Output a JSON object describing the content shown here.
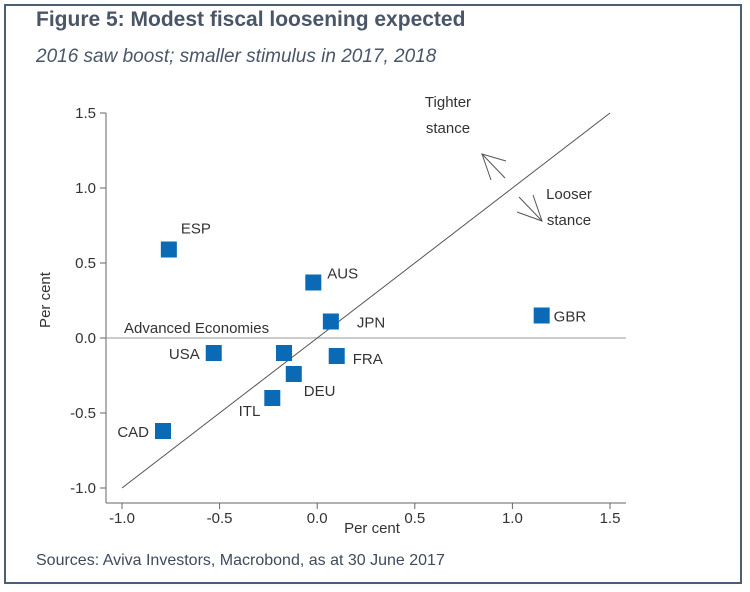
{
  "header": {
    "title": "Figure 5: Modest fiscal loosening expected",
    "subtitle": "2016 saw boost; smaller stimulus in 2017, 2018"
  },
  "footer": {
    "source": "Sources: Aviva Investors, Macrobond, as at 30 June 2017"
  },
  "chart_data": {
    "type": "scatter",
    "xlabel": "Per cent",
    "ylabel": "Per cent",
    "xlim": [
      -1.05,
      1.55
    ],
    "ylim": [
      -1.05,
      1.5
    ],
    "xticks": [
      "-1.0",
      "-0.5",
      "0.0",
      "0.5",
      "1.0",
      "1.5"
    ],
    "yticks": [
      "1.5",
      "1.0",
      "0.5",
      "0.0",
      "-0.5",
      "-1.0"
    ],
    "marker_color": "#0a6ab5",
    "diagonal_line": [
      [
        -1.0,
        -1.0
      ],
      [
        1.5,
        1.5
      ]
    ],
    "zero_line_label": "Advanced Economies",
    "annotations": {
      "tighter": [
        "Tighter",
        "stance"
      ],
      "looser": [
        "Looser",
        "stance"
      ]
    },
    "points": [
      {
        "label": "ESP",
        "x": -0.76,
        "y": 0.59
      },
      {
        "label": "AUS",
        "x": -0.02,
        "y": 0.37
      },
      {
        "label": "JPN",
        "x": 0.07,
        "y": 0.11
      },
      {
        "label": "GBR",
        "x": 1.15,
        "y": 0.15
      },
      {
        "label": "USA",
        "x": -0.53,
        "y": -0.1
      },
      {
        "label": "",
        "x": -0.17,
        "y": -0.1
      },
      {
        "label": "FRA",
        "x": 0.1,
        "y": -0.12
      },
      {
        "label": "DEU",
        "x": -0.12,
        "y": -0.24
      },
      {
        "label": "ITL",
        "x": -0.23,
        "y": -0.4
      },
      {
        "label": "CAD",
        "x": -0.79,
        "y": -0.62
      }
    ]
  }
}
